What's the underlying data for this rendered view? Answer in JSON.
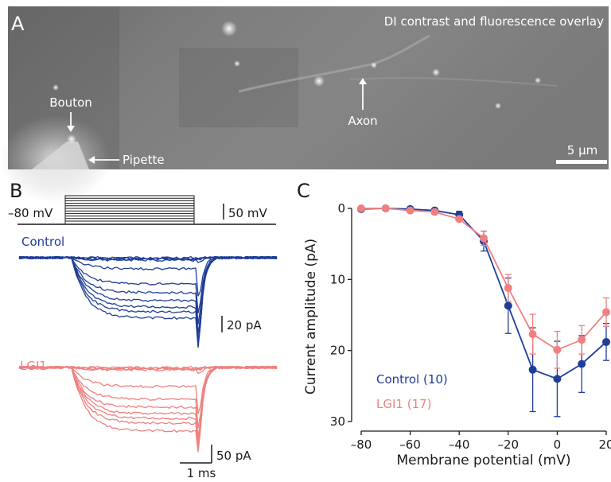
{
  "panel_a": {
    "label": "A",
    "title": "DI contrast and fluorescence overlay",
    "bouton_label": "Bouton",
    "pipette_label": "Pipette",
    "axon_label": "Axon",
    "scalebar_label": "5 µm"
  },
  "panel_b": {
    "label": "B",
    "holding_label": "–80 mV",
    "voltage_scale_label": "50 mV",
    "control_label": "Control",
    "lgi1_label": "LGI1",
    "control_current_scale_label": "20 pA",
    "lgi1_current_scale_label": "50 pA",
    "time_scale_label": "1 ms"
  },
  "colors": {
    "control": "#1f3d99",
    "lgi1": "#f08080",
    "axis": "#1a1a1a"
  },
  "chart_data": {
    "type": "line",
    "panel_label": "C",
    "xlabel": "Membrane potential (mV)",
    "ylabel": "Current amplitude (pA)",
    "xlim": [
      -80,
      20
    ],
    "ylim": [
      30,
      0
    ],
    "x_ticks": [
      "–80",
      "–60",
      "–40",
      "–20",
      "0",
      "20"
    ],
    "x_tick_values": [
      -80,
      -60,
      -40,
      -20,
      0,
      20
    ],
    "y_ticks": [
      "0",
      "10",
      "20",
      "30"
    ],
    "y_tick_values": [
      0,
      10,
      20,
      30
    ],
    "y_axis_inverted": true,
    "grid": false,
    "legend_position": "bottom-left",
    "x": [
      -80,
      -70,
      -60,
      -50,
      -40,
      -30,
      -20,
      -10,
      0,
      10,
      20
    ],
    "series": [
      {
        "name": "Control (10)",
        "color": "#1f3d99",
        "values": [
          0.1,
          0.0,
          0.1,
          0.3,
          0.9,
          4.6,
          13.7,
          22.7,
          24.0,
          21.9,
          18.8
        ],
        "errors": [
          0.2,
          0.2,
          0.2,
          0.3,
          0.5,
          1.4,
          3.9,
          5.9,
          5.3,
          4.0,
          2.6
        ]
      },
      {
        "name": "LGI1 (17)",
        "color": "#f08080",
        "values": [
          0.0,
          0.0,
          0.3,
          0.5,
          1.5,
          4.2,
          11.2,
          17.7,
          19.9,
          18.5,
          14.6
        ],
        "errors": [
          0.2,
          0.2,
          0.2,
          0.3,
          0.4,
          1.0,
          1.9,
          2.8,
          2.6,
          2.0,
          2.0
        ]
      }
    ]
  }
}
